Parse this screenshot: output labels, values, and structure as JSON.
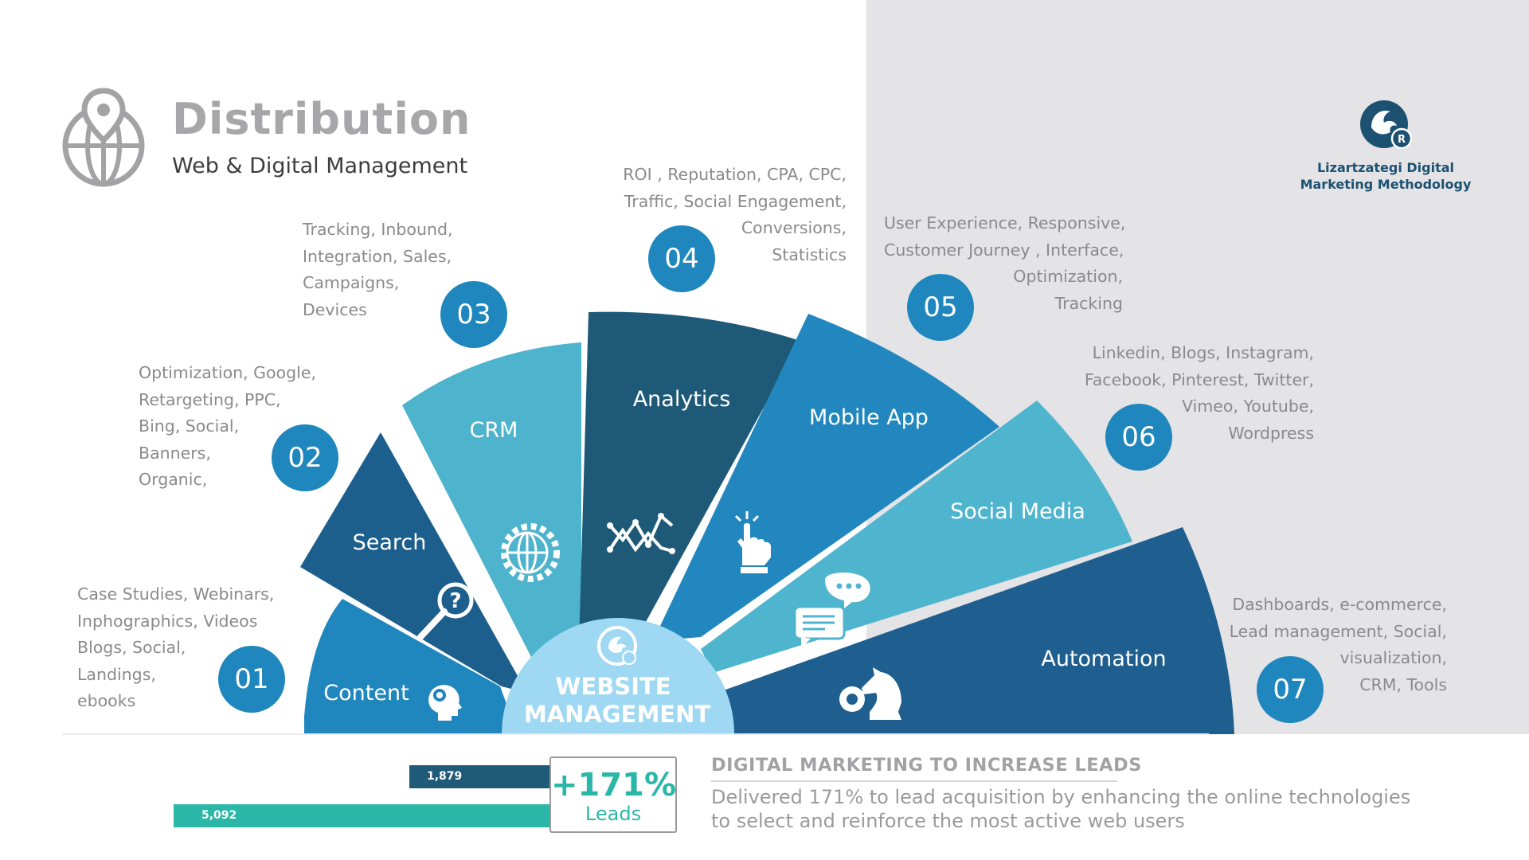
{
  "header": {
    "title": "Distribution",
    "subtitle": "Web & Digital Management",
    "icon": "globe-pin-icon"
  },
  "brand": {
    "line1": "Lizartzategi Digital",
    "line2": "Marketing Methodology",
    "color": "#1c5172"
  },
  "center": {
    "line1": "WEBSITE",
    "line2": "MANAGEMENT",
    "color": "#9fd8f2"
  },
  "segments": [
    {
      "label": "Content",
      "icon": "head-gears-icon",
      "color": "#1f87bd",
      "number": "01",
      "desc": [
        "Case Studies, Webinars,",
        "Inphographics, Videos",
        "Blogs, Social,",
        "Landings,",
        "ebooks"
      ]
    },
    {
      "label": "Search",
      "icon": "magnifier-question-icon",
      "color": "#1c5f8d",
      "number": "02",
      "desc": [
        "Optimization, Google,",
        "Retargeting, PPC,",
        "Bing, Social,",
        "Banners,",
        "Organic,"
      ]
    },
    {
      "label": "CRM",
      "icon": "globe-gear-icon",
      "color": "#4eb3cc",
      "number": "03",
      "desc": [
        "Tracking, Inbound,",
        "Integration, Sales,",
        "Campaigns,",
        "Devices"
      ]
    },
    {
      "label": "Analytics",
      "icon": "trend-lines-icon",
      "color": "#1e5a78",
      "number": "04",
      "desc": [
        "ROI , Reputation, CPA, CPC,",
        "Traffic, Social Engagement,",
        "Conversions,",
        "Statistics"
      ]
    },
    {
      "label": "Mobile App",
      "icon": "tap-hand-icon",
      "color": "#2187be",
      "number": "05",
      "desc": [
        "User Experience, Responsive,",
        "Customer Journey , Interface,",
        "Optimization,",
        "Tracking"
      ]
    },
    {
      "label": "Social Media",
      "icon": "chat-bubbles-icon",
      "color": "#4fb5cf",
      "number": "06",
      "desc": [
        "Linkedin, Blogs, Instagram,",
        "Facebook, Pinterest, Twitter,",
        "Vimeo, Youtube,",
        "Wordpress"
      ]
    },
    {
      "label": "Automation",
      "icon": "chess-knight-gear-icon",
      "color": "#1e5f8f",
      "number": "07",
      "desc": [
        "Dashboards, e-commerce,",
        "Lead management, Social,",
        "visualization,",
        "CRM, Tools"
      ]
    }
  ],
  "leads": {
    "before_value": "1,879",
    "after_value": "5,092",
    "before": 1879,
    "after": 5092,
    "percent": "+171%",
    "label": "Leads",
    "colors": {
      "before": "#1f5a79",
      "after": "#2bb7a7"
    }
  },
  "footer": {
    "title": "DIGITAL MARKETING TO INCREASE LEADS",
    "text_line1": "Delivered 171% to lead acquisition by enhancing the online technologies",
    "text_line2": "to select and reinforce the most active web users"
  }
}
